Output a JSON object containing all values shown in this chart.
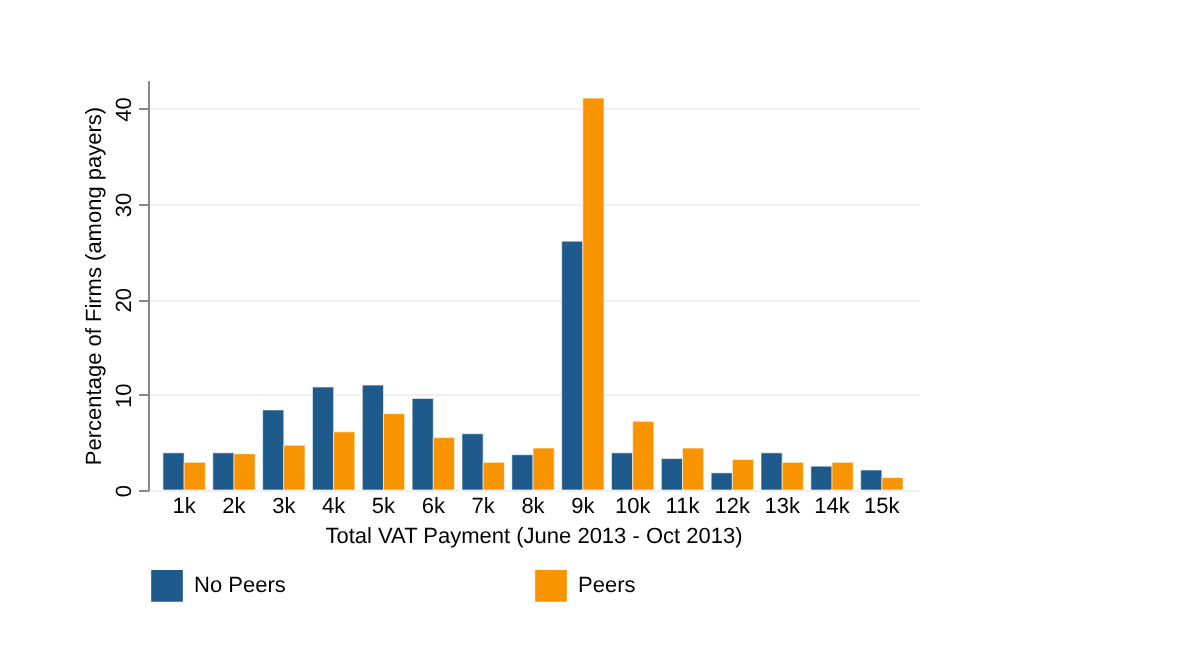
{
  "chart_data": {
    "type": "bar",
    "xlabel": "Total VAT Payment (June 2013 - Oct 2013)",
    "ylabel": "Percentage of Firms (among payers)",
    "categories": [
      "1k",
      "2k",
      "3k",
      "4k",
      "5k",
      "6k",
      "7k",
      "8k",
      "9k",
      "10k",
      "11k",
      "12k",
      "13k",
      "14k",
      "15k"
    ],
    "series": [
      {
        "name": "No Peers",
        "color": "#1f5a8c",
        "values": [
          3.9,
          3.9,
          8.4,
          10.8,
          11.0,
          9.6,
          5.9,
          3.7,
          26.1,
          3.9,
          3.3,
          1.8,
          3.9,
          2.5,
          2.1
        ]
      },
      {
        "name": "Peers",
        "color": "#f79400",
        "values": [
          2.9,
          3.8,
          4.7,
          6.1,
          8.0,
          5.5,
          2.9,
          4.4,
          41.1,
          7.2,
          4.4,
          3.2,
          2.9,
          2.9,
          1.3
        ]
      }
    ],
    "ylim": [
      0,
      43
    ],
    "yticks": [
      0,
      10,
      20,
      30,
      40
    ],
    "grid": "y",
    "legend": "bottom"
  }
}
